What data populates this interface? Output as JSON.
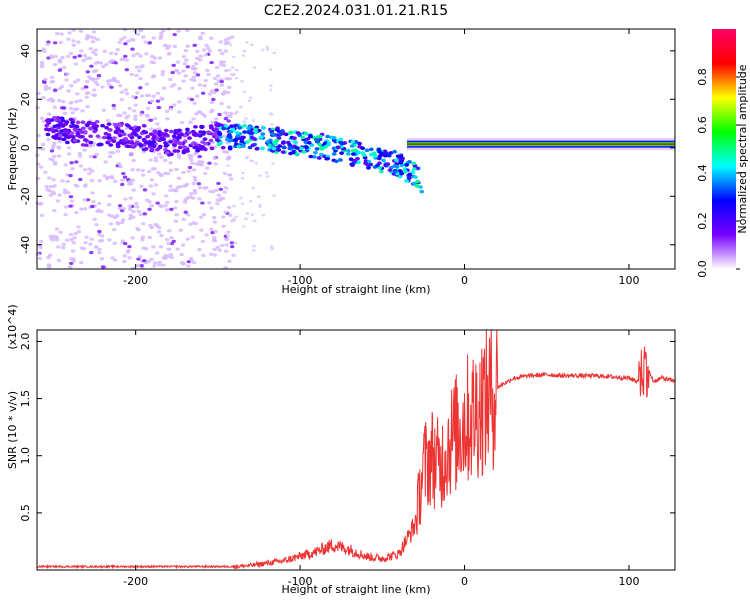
{
  "title": "C2E2.2024.031.01.21.R15",
  "chart_data": [
    {
      "type": "heatmap",
      "panel": "spectrogram",
      "xlabel": "Height of straight line (km)",
      "ylabel": "Frequency (Hz)",
      "xlim": [
        -260,
        128
      ],
      "ylim": [
        -50,
        49
      ],
      "xticks": [
        -200,
        -100,
        0,
        100
      ],
      "xtick_labels": [
        "-200",
        "-100",
        "0",
        "100"
      ],
      "yticks": [
        -40,
        -20,
        0,
        20,
        40
      ],
      "ytick_labels": [
        "-40",
        "-20",
        "0",
        "20",
        "40"
      ],
      "colorbar": {
        "label": "Normalized spectral amplitude",
        "range": [
          0,
          1
        ],
        "ticks": [
          0.0,
          0.2,
          0.4,
          0.6,
          0.8
        ],
        "tick_labels": [
          "0.0",
          "0.2",
          "0.4",
          "0.6",
          "0.8"
        ],
        "colors": [
          "#ffffff",
          "#7700ff",
          "#0000ff",
          "#00ffff",
          "#00ff00",
          "#ffff00",
          "#ff0000",
          "#ff0066"
        ]
      },
      "features": [
        {
          "description_values": "diffuse noise band",
          "x_range": [
            -260,
            -140
          ],
          "freq_range": [
            -50,
            49
          ],
          "amplitude": 0.1
        },
        {
          "description_values": "main tone trace",
          "points": [
            [
              -255,
              8
            ],
            [
              -230,
              6
            ],
            [
              -200,
              5
            ],
            [
              -180,
              2
            ],
            [
              -150,
              5
            ],
            [
              -130,
              4
            ],
            [
              -110,
              3
            ],
            [
              -90,
              1
            ],
            [
              -70,
              -2
            ],
            [
              -55,
              -4
            ],
            [
              -40,
              -7
            ],
            [
              -25,
              -14
            ]
          ],
          "amplitude": 0.5
        },
        {
          "description_values": "steady carrier",
          "x_range": [
            -35,
            128
          ],
          "freq": 1.5,
          "amplitude": 0.9
        }
      ]
    },
    {
      "type": "line",
      "panel": "snr",
      "xlabel": "Height of straight line (km)",
      "ylabel": "SNR (10 * v/v)",
      "y_multiplier": "(x10^4)",
      "xlim": [
        -260,
        128
      ],
      "ylim": [
        0,
        2.1
      ],
      "xticks": [
        -200,
        -100,
        0,
        100
      ],
      "xtick_labels": [
        "-200",
        "-100",
        "0",
        "100"
      ],
      "yticks": [
        0.5,
        1.0,
        1.5,
        2.0
      ],
      "ytick_labels": [
        "0.5",
        "1.0",
        "1.5",
        "2.0"
      ],
      "line_color": "#ee3333",
      "series": [
        {
          "x": [
            -260,
            -240,
            -220,
            -200,
            -180,
            -160,
            -140,
            -130,
            -120,
            -110,
            -100,
            -90,
            -80,
            -70,
            -60,
            -50,
            -40,
            -30,
            -25,
            -20,
            -15,
            -10,
            -5,
            0,
            5,
            10,
            20,
            30,
            40,
            50,
            60,
            70,
            80,
            90,
            100,
            105,
            110,
            115,
            120,
            128
          ],
          "y": [
            0.03,
            0.03,
            0.03,
            0.03,
            0.03,
            0.03,
            0.03,
            0.04,
            0.06,
            0.08,
            0.12,
            0.16,
            0.22,
            0.18,
            0.12,
            0.1,
            0.14,
            0.4,
            0.9,
            1.0,
            0.9,
            1.1,
            1.2,
            1.3,
            1.35,
            1.45,
            1.6,
            1.68,
            1.7,
            1.71,
            1.7,
            1.7,
            1.7,
            1.69,
            1.68,
            1.65,
            1.8,
            1.65,
            1.68,
            1.65
          ]
        }
      ]
    }
  ]
}
